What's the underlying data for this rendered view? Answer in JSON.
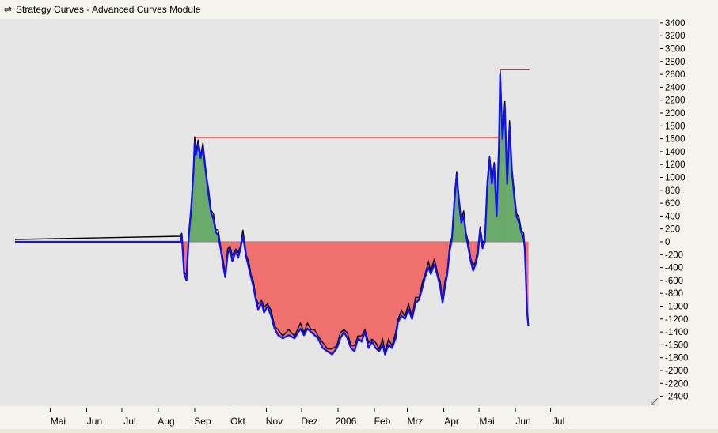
{
  "window": {
    "title": "Strategy Curves - Advanced Curves Module",
    "icon": "double-arrow-icon"
  },
  "chart_data": {
    "type": "area",
    "title": "",
    "xlabel": "",
    "ylabel": "",
    "grid": false,
    "legend": "none",
    "ylim": [
      -2400,
      3400
    ],
    "y_ticks": [
      3400,
      3200,
      3000,
      2800,
      2600,
      2400,
      2200,
      2000,
      1800,
      1600,
      1400,
      1200,
      1000,
      800,
      600,
      400,
      200,
      0,
      -200,
      -400,
      -600,
      -800,
      -1000,
      -1200,
      -1400,
      -1600,
      -1800,
      -2000,
      -2200,
      -2400
    ],
    "x_ticks": [
      {
        "label": "Mai",
        "date": "2005-05-01"
      },
      {
        "label": "Jun",
        "date": "2005-06-01"
      },
      {
        "label": "Jul",
        "date": "2005-07-01"
      },
      {
        "label": "Aug",
        "date": "2005-08-01"
      },
      {
        "label": "Sep",
        "date": "2005-09-01"
      },
      {
        "label": "Okt",
        "date": "2005-10-01"
      },
      {
        "label": "Nov",
        "date": "2005-11-01"
      },
      {
        "label": "Dez",
        "date": "2005-12-01"
      },
      {
        "label": "2006",
        "date": "2006-01-01"
      },
      {
        "label": "Feb",
        "date": "2006-02-01"
      },
      {
        "label": "Mrz",
        "date": "2006-03-01"
      },
      {
        "label": "Apr",
        "date": "2006-04-01"
      },
      {
        "label": "Mai",
        "date": "2006-05-01"
      },
      {
        "label": "Jun",
        "date": "2006-06-01"
      },
      {
        "label": "Jul",
        "date": "2006-07-01"
      }
    ],
    "colors": {
      "curve": "#1010f0",
      "spike": "#000000",
      "positive_fill": "#6aaa6a",
      "negative_fill": "#f07070",
      "peak_line": "#ff2020",
      "zero_line": "#808080"
    },
    "series": [
      {
        "values": [
          [
            "2005-04-01",
            0
          ],
          [
            "2005-08-20",
            0
          ],
          [
            "2005-08-21",
            100
          ],
          [
            "2005-08-22",
            -200
          ],
          [
            "2005-08-23",
            -500
          ],
          [
            "2005-08-25",
            -600
          ],
          [
            "2005-08-27",
            100
          ],
          [
            "2005-08-29",
            500
          ],
          [
            "2005-08-31",
            1100
          ],
          [
            "2005-09-01",
            1550
          ],
          [
            "2005-09-02",
            1350
          ],
          [
            "2005-09-04",
            1500
          ],
          [
            "2005-09-06",
            1300
          ],
          [
            "2005-09-08",
            1450
          ],
          [
            "2005-09-11",
            1000
          ],
          [
            "2005-09-13",
            700
          ],
          [
            "2005-09-15",
            450
          ],
          [
            "2005-09-17",
            350
          ],
          [
            "2005-09-19",
            150
          ],
          [
            "2005-09-21",
            100
          ],
          [
            "2005-09-23",
            -100
          ],
          [
            "2005-09-25",
            -350
          ],
          [
            "2005-09-27",
            -550
          ],
          [
            "2005-09-29",
            -200
          ],
          [
            "2005-10-01",
            -100
          ],
          [
            "2005-10-03",
            -300
          ],
          [
            "2005-10-06",
            -150
          ],
          [
            "2005-10-08",
            -250
          ],
          [
            "2005-10-10",
            -100
          ],
          [
            "2005-10-12",
            100
          ],
          [
            "2005-10-15",
            -250
          ],
          [
            "2005-10-17",
            -400
          ],
          [
            "2005-10-19",
            -550
          ],
          [
            "2005-10-21",
            -700
          ],
          [
            "2005-10-23",
            -900
          ],
          [
            "2005-10-25",
            -1050
          ],
          [
            "2005-10-28",
            -950
          ],
          [
            "2005-10-30",
            -1100
          ],
          [
            "2005-11-02",
            -1000
          ],
          [
            "2005-11-05",
            -1150
          ],
          [
            "2005-11-08",
            -1350
          ],
          [
            "2005-11-11",
            -1450
          ],
          [
            "2005-11-15",
            -1500
          ],
          [
            "2005-11-20",
            -1450
          ],
          [
            "2005-11-25",
            -1500
          ],
          [
            "2005-11-30",
            -1350
          ],
          [
            "2005-12-03",
            -1450
          ],
          [
            "2005-12-06",
            -1350
          ],
          [
            "2005-12-09",
            -1400
          ],
          [
            "2005-12-12",
            -1450
          ],
          [
            "2005-12-15",
            -1500
          ],
          [
            "2005-12-19",
            -1650
          ],
          [
            "2005-12-23",
            -1700
          ],
          [
            "2005-12-27",
            -1750
          ],
          [
            "2005-12-31",
            -1650
          ],
          [
            "2006-01-03",
            -1500
          ],
          [
            "2006-01-06",
            -1400
          ],
          [
            "2006-01-09",
            -1500
          ],
          [
            "2006-01-12",
            -1650
          ],
          [
            "2006-01-15",
            -1700
          ],
          [
            "2006-01-18",
            -1500
          ],
          [
            "2006-01-21",
            -1550
          ],
          [
            "2006-01-24",
            -1400
          ],
          [
            "2006-01-27",
            -1650
          ],
          [
            "2006-01-30",
            -1550
          ],
          [
            "2006-02-02",
            -1650
          ],
          [
            "2006-02-05",
            -1700
          ],
          [
            "2006-02-08",
            -1600
          ],
          [
            "2006-02-10",
            -1750
          ],
          [
            "2006-02-13",
            -1600
          ],
          [
            "2006-02-16",
            -1650
          ],
          [
            "2006-02-19",
            -1500
          ],
          [
            "2006-02-21",
            -1250
          ],
          [
            "2006-02-24",
            -1150
          ],
          [
            "2006-02-27",
            -1200
          ],
          [
            "2006-03-02",
            -1050
          ],
          [
            "2006-03-05",
            -1200
          ],
          [
            "2006-03-08",
            -950
          ],
          [
            "2006-03-11",
            -900
          ],
          [
            "2006-03-14",
            -700
          ],
          [
            "2006-03-16",
            -550
          ],
          [
            "2006-03-19",
            -400
          ],
          [
            "2006-03-21",
            -500
          ],
          [
            "2006-03-24",
            -350
          ],
          [
            "2006-03-27",
            -550
          ],
          [
            "2006-03-29",
            -700
          ],
          [
            "2006-03-31",
            -950
          ],
          [
            "2006-04-02",
            -700
          ],
          [
            "2006-04-04",
            -500
          ],
          [
            "2006-04-06",
            -150
          ],
          [
            "2006-04-08",
            50
          ],
          [
            "2006-04-10",
            600
          ],
          [
            "2006-04-12",
            1050
          ],
          [
            "2006-04-14",
            600
          ],
          [
            "2006-04-16",
            300
          ],
          [
            "2006-04-18",
            400
          ],
          [
            "2006-04-20",
            100
          ],
          [
            "2006-04-22",
            -100
          ],
          [
            "2006-04-24",
            -300
          ],
          [
            "2006-04-26",
            -450
          ],
          [
            "2006-04-28",
            -350
          ],
          [
            "2006-04-30",
            -200
          ],
          [
            "2006-05-02",
            200
          ],
          [
            "2006-05-04",
            -100
          ],
          [
            "2006-05-06",
            0
          ],
          [
            "2006-05-08",
            850
          ],
          [
            "2006-05-10",
            1300
          ],
          [
            "2006-05-12",
            900
          ],
          [
            "2006-05-14",
            1200
          ],
          [
            "2006-05-16",
            400
          ],
          [
            "2006-05-18",
            1500
          ],
          [
            "2006-05-19",
            2600
          ],
          [
            "2006-05-21",
            1600
          ],
          [
            "2006-05-23",
            2100
          ],
          [
            "2006-05-25",
            900
          ],
          [
            "2006-05-27",
            1800
          ],
          [
            "2006-05-29",
            1100
          ],
          [
            "2006-05-31",
            700
          ],
          [
            "2006-06-02",
            400
          ],
          [
            "2006-06-04",
            300
          ],
          [
            "2006-06-06",
            150
          ],
          [
            "2006-06-08",
            50
          ],
          [
            "2006-06-09",
            -100
          ],
          [
            "2006-06-10",
            -600
          ],
          [
            "2006-06-11",
            -1100
          ],
          [
            "2006-06-12",
            -1300
          ]
        ]
      }
    ],
    "peak_lines": [
      {
        "from": "2005-09-01",
        "to": "2006-05-19",
        "value": 1620
      },
      {
        "from": "2006-05-19",
        "to": "2006-06-13",
        "value": 2680
      }
    ]
  }
}
